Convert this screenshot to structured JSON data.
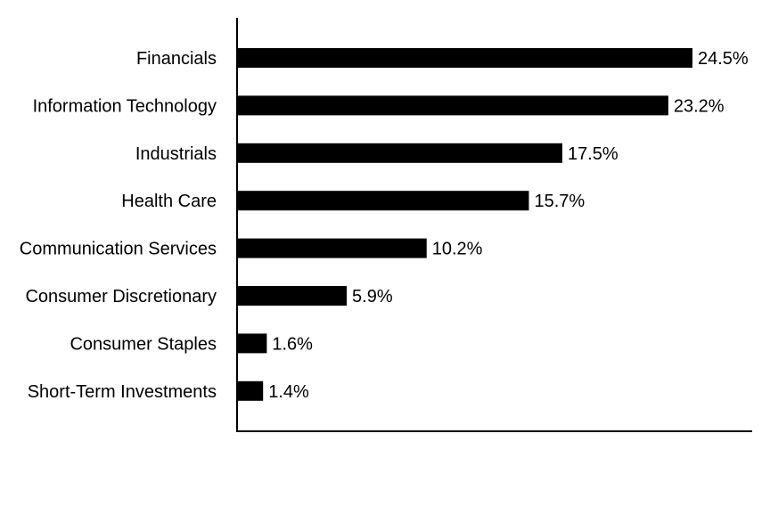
{
  "chart_data": {
    "type": "bar",
    "orientation": "horizontal",
    "categories": [
      "Financials",
      "Information Technology",
      "Industrials",
      "Health Care",
      "Communication Services",
      "Consumer Discretionary",
      "Consumer Staples",
      "Short-Term Investments"
    ],
    "values": [
      24.5,
      23.2,
      17.5,
      15.7,
      10.2,
      5.9,
      1.6,
      1.4
    ],
    "value_labels": [
      "24.5%",
      "23.2%",
      "17.5%",
      "15.7%",
      "10.2%",
      "5.9%",
      "1.6%",
      "1.4%"
    ],
    "unit": "%",
    "title": "",
    "xlabel": "",
    "ylabel": "",
    "xlim": [
      0,
      30
    ],
    "grid": false,
    "legend": "none",
    "bar_color": "#000000"
  }
}
